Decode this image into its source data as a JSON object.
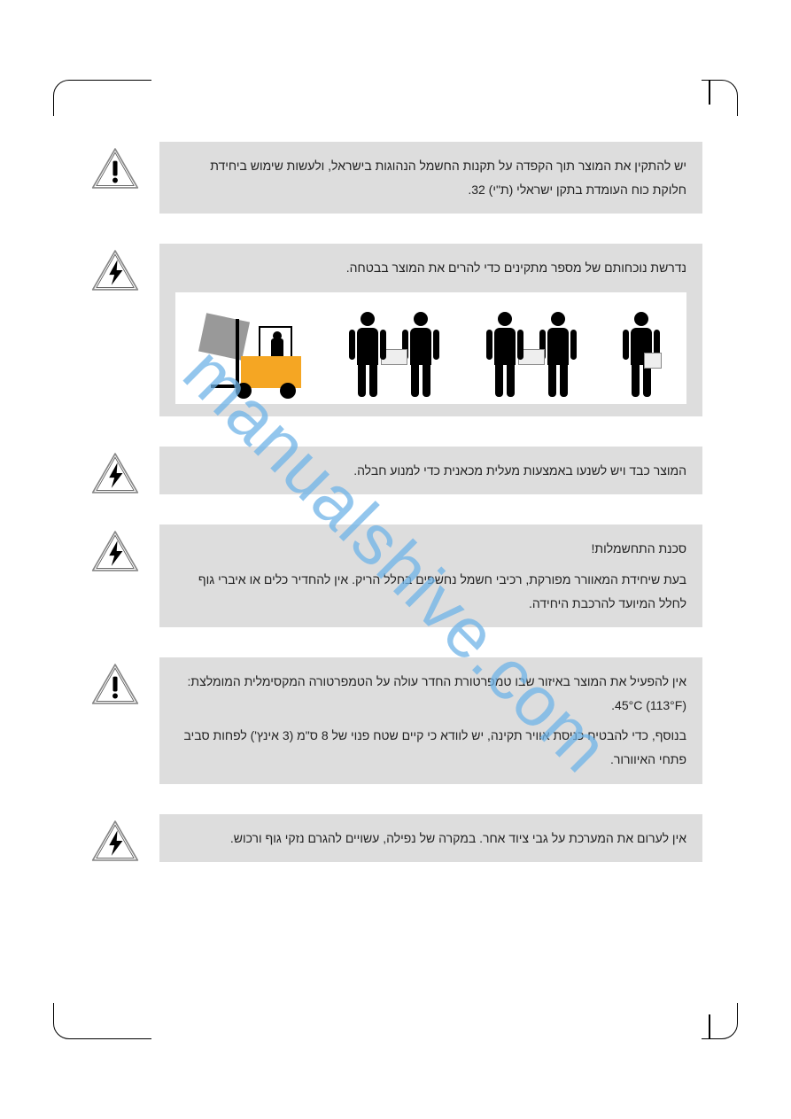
{
  "watermark": "manualshive.com",
  "icons": {
    "caution": {
      "fill": "#f9b233",
      "stroke": "#6a6a6a",
      "symbol_color": "#000000"
    },
    "electric": {
      "fill": "#f9b233",
      "stroke": "#6a6a6a",
      "symbol_color": "#000000"
    }
  },
  "warnings": [
    {
      "icon": "caution",
      "paragraphs": [
        "יש להתקין את המוצר תוך הקפדה על תקנות החשמל הנהוגות בישראל, ולעשות שימוש ביחידת חלוקת כוח העומדת בתקן ישראלי (ת\"י) 32."
      ],
      "has_illustration": false
    },
    {
      "icon": "electric",
      "paragraphs": [
        "נדרשת נוכחותם של מספר מתקינים כדי להרים את המוצר בבטחה."
      ],
      "has_illustration": true
    },
    {
      "icon": "electric",
      "paragraphs": [
        "המוצר כבד ויש לשנעו באמצעות מעלית מכאנית כדי למנוע חבלה."
      ],
      "has_illustration": false
    },
    {
      "icon": "electric",
      "paragraphs": [
        "סכנת התחשמלות!",
        "בעת שיחידת המאוורר מפורקת, רכיבי חשמל נחשפים בחלל הריק. אין להחדיר כלים או איברי גוף לחלל המיועד להרכבת היחידה."
      ],
      "has_illustration": false
    },
    {
      "icon": "caution",
      "paragraphs": [
        "אין להפעיל את המוצר באיזור שבו טמפרטורת החדר עולה על הטמפרטורה המקסימלית המומלצת: ‎45°C (113°F).",
        "בנוסף, כדי להבטיח כניסת אוויר תקינה, יש לוודא כי קיים שטח פנוי של 8 ס\"מ (3 אינץ') לפחות סביב פתחי האיוורור."
      ],
      "has_illustration": false
    },
    {
      "icon": "electric",
      "paragraphs": [
        "אין לערום את המערכת על גבי ציוד אחר. במקרה של נפילה, עשויים להגרם נזקי גוף ורכוש."
      ],
      "has_illustration": false
    }
  ]
}
